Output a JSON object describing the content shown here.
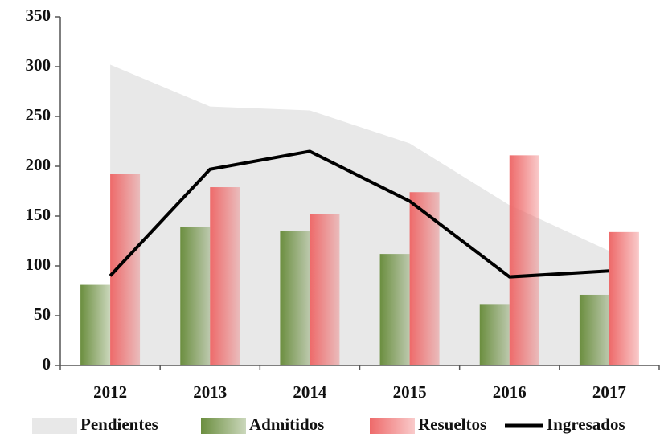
{
  "chart_data": {
    "type": "bar",
    "categories": [
      "2012",
      "2013",
      "2014",
      "2015",
      "2016",
      "2017"
    ],
    "series": [
      {
        "name": "Pendientes",
        "type": "area",
        "color": "#e8e8e8",
        "values": [
          302,
          260,
          256,
          223,
          161,
          115
        ]
      },
      {
        "name": "Admitidos",
        "type": "bar",
        "color": "#6b8e3f",
        "values": [
          81,
          139,
          135,
          112,
          61,
          71
        ]
      },
      {
        "name": "Resueltos",
        "type": "bar",
        "color": "#ee6a6a",
        "values": [
          192,
          179,
          152,
          174,
          211,
          134
        ]
      },
      {
        "name": "Ingresados",
        "type": "line",
        "color": "#000000",
        "values": [
          90,
          197,
          215,
          165,
          89,
          95
        ]
      }
    ],
    "ylim": [
      0,
      350
    ],
    "yticks": [
      0,
      50,
      100,
      150,
      200,
      250,
      300,
      350
    ],
    "legend": "bottom"
  }
}
